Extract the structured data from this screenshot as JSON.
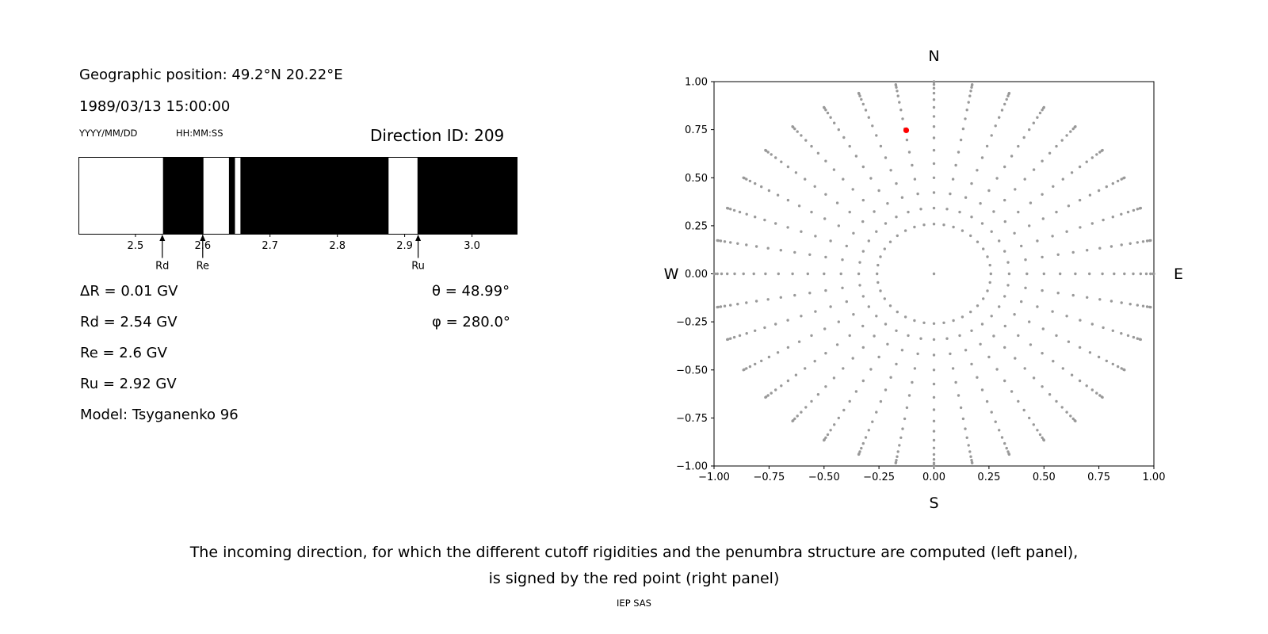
{
  "left_panel": {
    "geo_position": "Geographic position: 49.2°N 20.22°E",
    "datetime": "1989/03/13 15:00:00",
    "date_format": "YYYY/MM/DD",
    "time_format": "HH:MM:SS",
    "direction_id": "Direction ID: 209",
    "values": {
      "delta_r": "ΔR = 0.01 GV",
      "theta": "θ = 48.99°",
      "rd": "Rd = 2.54 GV",
      "phi": "φ = 280.0°",
      "re": "Re = 2.6 GV",
      "ru": "Ru = 2.92 GV",
      "model": "Model: Tsyganenko 96"
    }
  },
  "caption": {
    "line1": "The incoming direction, for which the different cutoff rigidities and the penumbra structure are computed (left panel),",
    "line2": "is signed by the red point (right panel)"
  },
  "footer": "IEP SAS",
  "chart_data": [
    {
      "type": "bar",
      "name": "penumbra-structure",
      "xlim": [
        2.416,
        3.067
      ],
      "xticks": [
        "2.5",
        "2.6",
        "2.7",
        "2.8",
        "2.9",
        "3.0"
      ],
      "xtick_values": [
        2.5,
        2.6,
        2.7,
        2.8,
        2.9,
        3.0
      ],
      "background": "#ffffff",
      "band_color": "#000000",
      "black_bands": [
        [
          2.541,
          2.601
        ],
        [
          2.639,
          2.648
        ],
        [
          2.656,
          2.876
        ],
        [
          2.919,
          3.067
        ]
      ],
      "markers": [
        {
          "label": "Rd",
          "value": 2.54
        },
        {
          "label": "Re",
          "value": 2.6
        },
        {
          "label": "Ru",
          "value": 2.92
        }
      ]
    },
    {
      "type": "scatter",
      "name": "incoming-direction-map",
      "xlim": [
        -1,
        1
      ],
      "ylim": [
        -1,
        1
      ],
      "xticks": [
        "−1.00",
        "−0.75",
        "−0.50",
        "−0.25",
        "0.00",
        "0.25",
        "0.50",
        "0.75",
        "1.00"
      ],
      "xtick_values": [
        -1,
        -0.75,
        -0.5,
        -0.25,
        0,
        0.25,
        0.5,
        0.75,
        1
      ],
      "yticks": [
        "1.00",
        "0.75",
        "0.50",
        "0.25",
        "0.00",
        "−0.25",
        "−0.50",
        "−0.75",
        "−1.00"
      ],
      "ytick_values": [
        1,
        0.75,
        0.5,
        0.25,
        0,
        -0.25,
        -0.5,
        -0.75,
        -1
      ],
      "compass": {
        "n": "N",
        "s": "S",
        "e": "E",
        "w": "W"
      },
      "grid_points": {
        "description": "direction grid: dots at radius sin(zenith) for each azimuth spoke",
        "azimuth_deg_step": 10,
        "zenith_deg_min": 15,
        "zenith_deg_max": 90,
        "zenith_deg_step": 5,
        "include_center": true
      },
      "point_color": "#999999",
      "point_radius": 1.7,
      "red_point": {
        "x": -0.126,
        "y": 0.747,
        "color": "#ff0000",
        "radius": 3.6
      }
    }
  ]
}
